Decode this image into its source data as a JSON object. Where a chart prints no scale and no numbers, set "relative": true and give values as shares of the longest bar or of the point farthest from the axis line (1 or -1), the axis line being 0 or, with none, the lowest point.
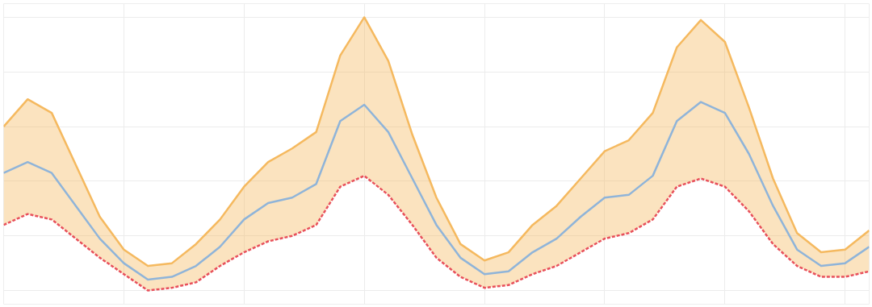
{
  "chart_data": {
    "type": "line",
    "relative": true,
    "grid": true,
    "categories": [
      null,
      null,
      null,
      null,
      null,
      null,
      null,
      null,
      null,
      null,
      null,
      null,
      null,
      null,
      null,
      null,
      null,
      null,
      null,
      null,
      null,
      null,
      null,
      null,
      null,
      null,
      null,
      null,
      null,
      null,
      null,
      null,
      null,
      null,
      null,
      null,
      null
    ],
    "series": [
      {
        "type": "area",
        "color": "#f5b95f",
        "values": [
          0.6,
          0.7,
          0.65,
          0.46,
          0.27,
          0.15,
          0.09,
          0.1,
          0.17,
          0.26,
          0.38,
          0.47,
          0.52,
          0.58,
          0.86,
          1,
          0.84,
          0.57,
          0.34,
          0.17,
          0.11,
          0.14,
          0.24,
          0.31,
          0.41,
          0.51,
          0.55,
          0.65,
          0.89,
          0.99,
          0.91,
          0.67,
          0.41,
          0.21,
          0.14,
          0.15,
          0.22
        ]
      },
      {
        "color": "#8fb4d9",
        "values": [
          0.43,
          0.47,
          0.43,
          0.31,
          0.19,
          0.1,
          0.04,
          0.05,
          0.09,
          0.16,
          0.26,
          0.32,
          0.34,
          0.39,
          0.62,
          0.68,
          0.58,
          0.41,
          0.24,
          0.12,
          0.06,
          0.07,
          0.14,
          0.19,
          0.27,
          0.34,
          0.35,
          0.42,
          0.62,
          0.69,
          0.65,
          0.5,
          0.31,
          0.15,
          0.09,
          0.1,
          0.16
        ]
      },
      {
        "color": "#e8505b",
        "line_style": "dashed",
        "values": [
          0.24,
          0.28,
          0.26,
          0.19,
          0.12,
          0.06,
          0,
          0.01,
          0.03,
          0.09,
          0.14,
          0.18,
          0.2,
          0.24,
          0.38,
          0.42,
          0.35,
          0.24,
          0.12,
          0.05,
          0.01,
          0.02,
          0.06,
          0.09,
          0.14,
          0.19,
          0.21,
          0.26,
          0.38,
          0.41,
          0.38,
          0.29,
          0.17,
          0.09,
          0.05,
          0.05,
          0.07
        ]
      }
    ]
  }
}
